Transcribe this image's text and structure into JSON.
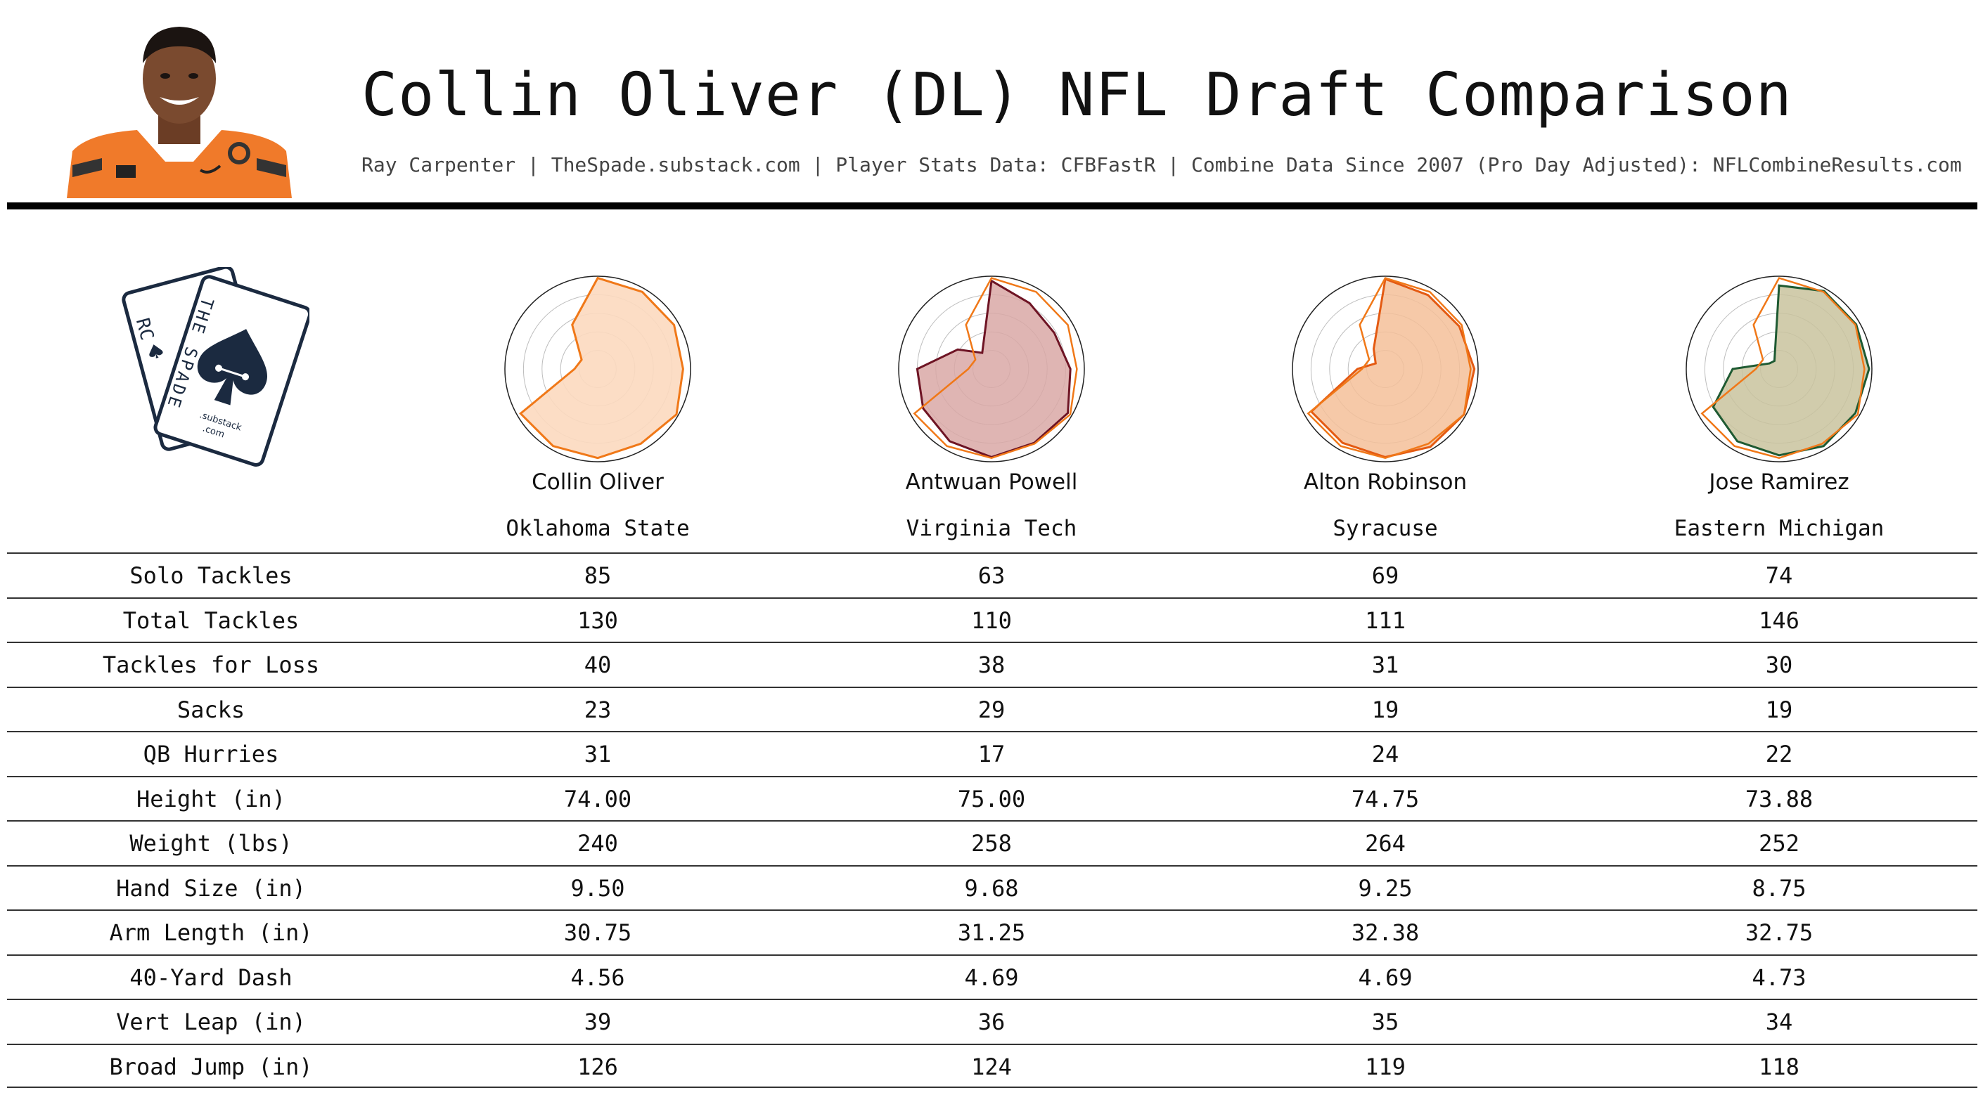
{
  "header": {
    "title": "Collin Oliver (DL) NFL Draft Comparison",
    "subtitle": "Ray Carpenter | TheSpade.substack.com | Player Stats Data: CFBFastR | Combine Data Since 2007 (Pro Day Adjusted): NFLCombineResults.com"
  },
  "logo": {
    "back_card_text": "RC",
    "front_card_text": "THE SPADE",
    "small_text_1": ".substack",
    "small_text_2": ".com"
  },
  "players": [
    {
      "name": "Collin Oliver",
      "school": "Oklahoma State",
      "color": "#f07818",
      "fill": "#fcd9bf"
    },
    {
      "name": "Antwuan Powell",
      "school": "Virginia Tech",
      "color": "#6e1424",
      "fill": "#d9a8a6"
    },
    {
      "name": "Alton Robinson",
      "school": "Syracuse",
      "color": "#e45a12",
      "fill": "#f5bf99"
    },
    {
      "name": "Jose Ramirez",
      "school": "Eastern Michigan",
      "color": "#1e5a32",
      "fill": "#c9c39e"
    }
  ],
  "chart_data": {
    "type": "table",
    "columns": [
      "Collin Oliver",
      "Antwuan Powell",
      "Alton Robinson",
      "Jose Ramirez"
    ],
    "rows": [
      {
        "label": "Solo Tackles",
        "values": [
          "85",
          "63",
          "69",
          "74"
        ]
      },
      {
        "label": "Total Tackles",
        "values": [
          "130",
          "110",
          "111",
          "146"
        ]
      },
      {
        "label": "Tackles for Loss",
        "values": [
          "40",
          "38",
          "31",
          "30"
        ]
      },
      {
        "label": "Sacks",
        "values": [
          "23",
          "29",
          "19",
          "19"
        ]
      },
      {
        "label": "QB Hurries",
        "values": [
          "31",
          "17",
          "24",
          "22"
        ]
      },
      {
        "label": "Height (in)",
        "values": [
          "74.00",
          "75.00",
          "74.75",
          "73.88"
        ]
      },
      {
        "label": "Weight (lbs)",
        "values": [
          "240",
          "258",
          "264",
          "252"
        ]
      },
      {
        "label": "Hand Size (in)",
        "values": [
          "9.50",
          "9.68",
          "9.25",
          "8.75"
        ]
      },
      {
        "label": "Arm Length (in)",
        "values": [
          "30.75",
          "31.25",
          "32.38",
          "32.75"
        ]
      },
      {
        "label": "40-Yard Dash",
        "values": [
          "4.56",
          "4.69",
          "4.69",
          "4.73"
        ]
      },
      {
        "label": "Vert Leap (in)",
        "values": [
          "39",
          "36",
          "35",
          "34"
        ]
      },
      {
        "label": "Broad Jump (in)",
        "values": [
          "126",
          "124",
          "119",
          "118"
        ]
      }
    ],
    "radar": {
      "type": "radar",
      "rings": 5,
      "max": 1,
      "series": [
        {
          "name": "Collin Oliver",
          "values": [
            0.98,
            0.96,
            0.95,
            0.92,
            0.98,
            0.93,
            0.96,
            0.96,
            0.96,
            0.25,
            0.2,
            0.55
          ]
        },
        {
          "name": "Antwuan Powell",
          "values": [
            0.95,
            0.82,
            0.78,
            0.85,
            0.95,
            0.92,
            0.95,
            0.9,
            0.85,
            0.8,
            0.42,
            0.2
          ]
        },
        {
          "name": "Alton Robinson",
          "values": [
            0.97,
            0.92,
            0.92,
            0.96,
            0.98,
            0.97,
            0.95,
            0.92,
            0.92,
            0.3,
            0.12,
            0.25
          ]
        },
        {
          "name": "Jose Ramirez",
          "values": [
            0.9,
            0.97,
            0.96,
            0.97,
            0.95,
            0.96,
            0.93,
            0.9,
            0.82,
            0.5,
            0.12,
            0.1
          ]
        }
      ],
      "comparison_overlay": {
        "name": "Collin Oliver",
        "color": "#f07818"
      }
    }
  }
}
